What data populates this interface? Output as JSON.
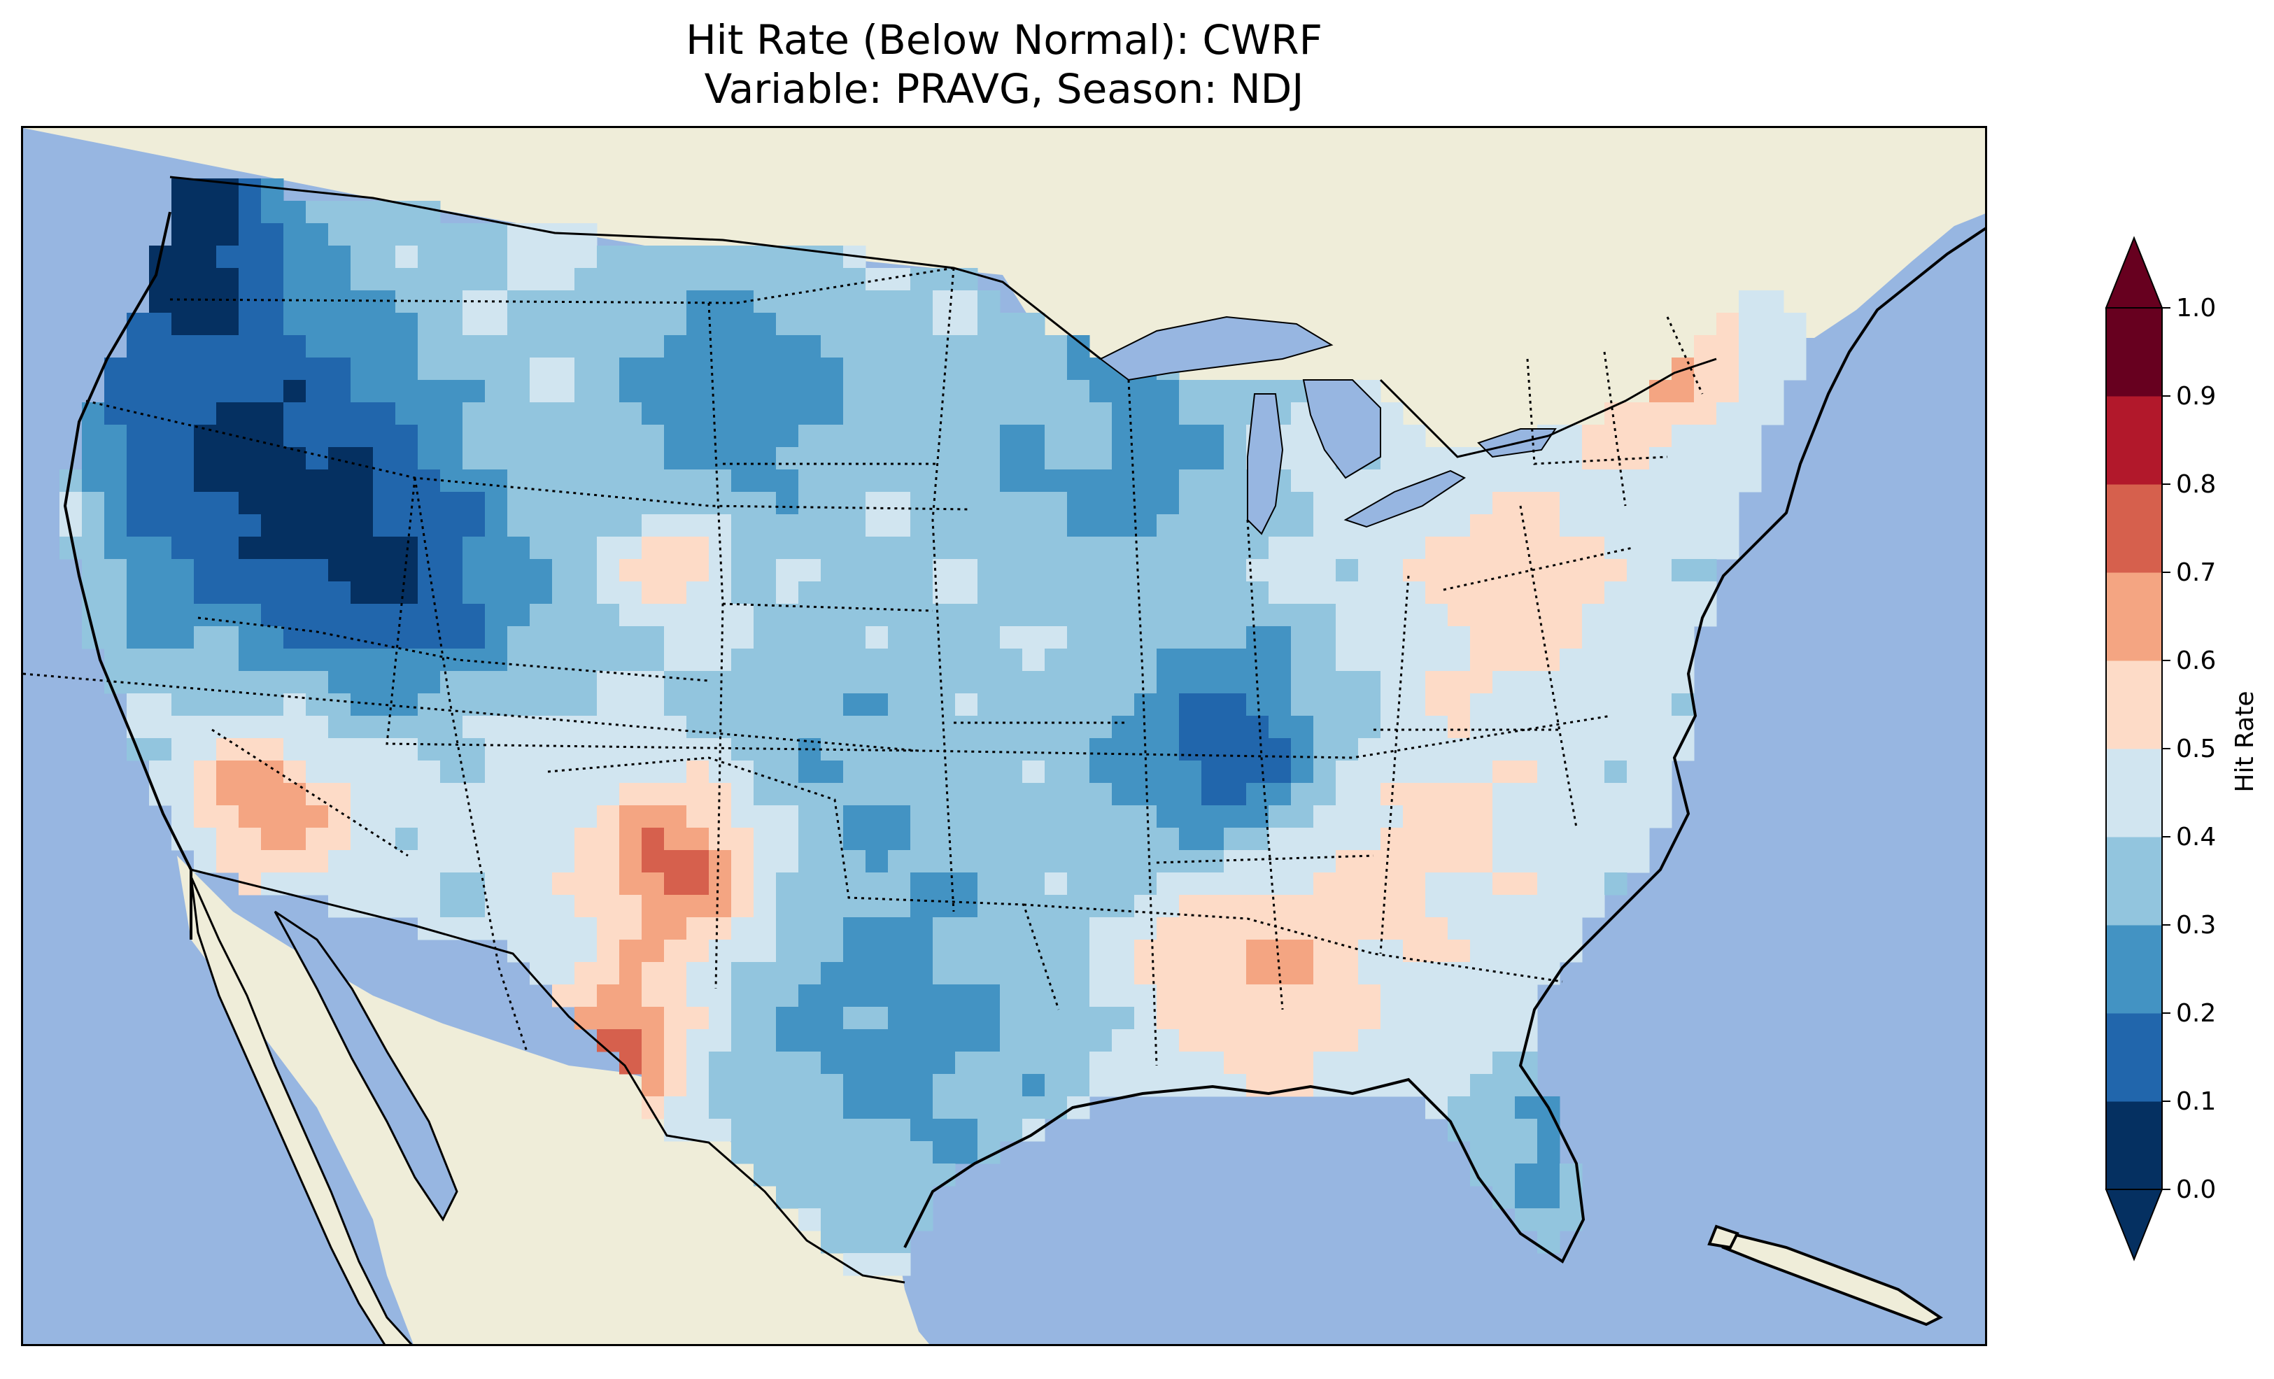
{
  "title": {
    "line1": "Hit Rate (Below Normal): CWRF",
    "line2": "Variable: PRAVG, Season: NDJ"
  },
  "colors": {
    "ocean": "#97b6e1",
    "land": "#efedd9",
    "coastline": "#000000",
    "border": "#000000"
  },
  "colorbar": {
    "label": "Hit Rate",
    "ticks": [
      "0.0",
      "0.1",
      "0.2",
      "0.3",
      "0.4",
      "0.5",
      "0.6",
      "0.7",
      "0.8",
      "0.9",
      "1.0"
    ],
    "colors": [
      "#053061",
      "#2166ac",
      "#4393c3",
      "#92c5de",
      "#d1e5f0",
      "#fddbc7",
      "#f4a582",
      "#d6604d",
      "#b2182b",
      "#67001f"
    ],
    "under_color": "#053061",
    "over_color": "#67001f",
    "extend": "both"
  },
  "chart_data": {
    "type": "heatmap",
    "region": "Contiguous United States",
    "metric": "Hit Rate",
    "value_range": [
      0.0,
      1.0
    ],
    "levels": [
      0.0,
      0.1,
      0.2,
      0.3,
      0.4,
      0.5,
      0.6,
      0.7,
      0.8,
      0.9,
      1.0
    ]
  }
}
